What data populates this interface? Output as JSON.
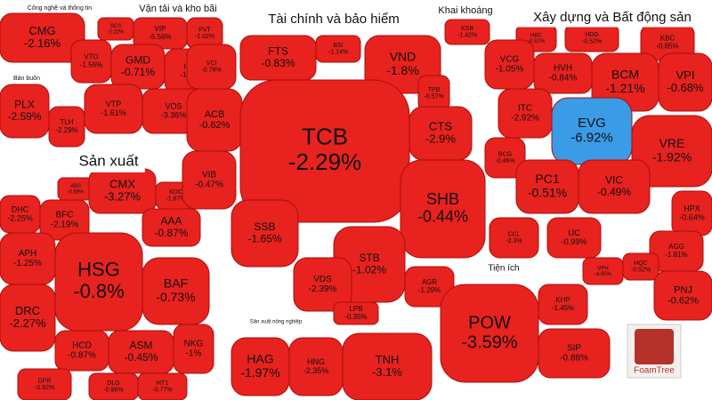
{
  "chart_data": {
    "type": "treemap",
    "color": "#e8221e",
    "logo": "FoamTree",
    "groups": [
      {
        "name": "Công nghệ và thông tin",
        "items": [
          {
            "label": "CMG",
            "value": -2.16,
            "value_label": "-2.16%"
          }
        ]
      },
      {
        "name": "Vận tải và kho bãi",
        "items": [
          {
            "label": "SCS",
            "value": -2.22,
            "value_label": "-2.22%"
          },
          {
            "label": "VIP",
            "value": -5.56,
            "value_label": "-5.56%"
          },
          {
            "label": "PVT",
            "value": -1.02,
            "value_label": "-1.02%"
          },
          {
            "label": "VTO",
            "value": -1.56,
            "value_label": "-1.56%"
          },
          {
            "label": "GMD",
            "value": -0.71,
            "value_label": "-0.71%"
          },
          {
            "label": "HAH",
            "value": -1.33,
            "value_label": "-1.33%"
          },
          {
            "label": "VTP",
            "value": -1.61,
            "value_label": "-1.61%"
          },
          {
            "label": "VOS",
            "value": -3.36,
            "value_label": "-3.36%"
          }
        ]
      },
      {
        "name": "Bán buôn",
        "items": [
          {
            "label": "PLX",
            "value": -2.59,
            "value_label": "-2.59%"
          },
          {
            "label": "TLH",
            "value": -2.29,
            "value_label": "-2.29%"
          }
        ]
      },
      {
        "name": "Sản xuất",
        "items": [
          {
            "label": "ABS",
            "value": -0.58,
            "value_label": "-0.58%"
          },
          {
            "label": "DHC",
            "value": -2.25,
            "value_label": "-2.25%"
          },
          {
            "label": "BFC",
            "value": -2.19,
            "value_label": "-2.19%"
          },
          {
            "label": "CMX",
            "value": -3.27,
            "value_label": "-3.27%"
          },
          {
            "label": "KDC",
            "value": -1.87,
            "value_label": "-1.87%"
          },
          {
            "label": "AAA",
            "value": -0.87,
            "value_label": "-0.87%"
          },
          {
            "label": "APH",
            "value": -1.25,
            "value_label": "-1.25%"
          },
          {
            "label": "HSG",
            "value": -0.8,
            "value_label": "-0.8%"
          },
          {
            "label": "BAF",
            "value": -0.73,
            "value_label": "-0.73%"
          },
          {
            "label": "DRC",
            "value": -2.27,
            "value_label": "-2.27%"
          },
          {
            "label": "HCD",
            "value": -0.87,
            "value_label": "-0.87%"
          },
          {
            "label": "ASM",
            "value": -0.45,
            "value_label": "-0.45%"
          },
          {
            "label": "NKG",
            "value": -1,
            "value_label": "-1%"
          },
          {
            "label": "DPR",
            "value": -0.92,
            "value_label": "-0.92%"
          },
          {
            "label": "DLG",
            "value": -0.96,
            "value_label": "-0.96%"
          },
          {
            "label": "HT1",
            "value": -0.77,
            "value_label": "-0.77%"
          }
        ]
      },
      {
        "name": "Tài chính và bảo hiểm",
        "items": [
          {
            "label": "VCI",
            "value": -0.76,
            "value_label": "-0.76%"
          },
          {
            "label": "FTS",
            "value": -0.83,
            "value_label": "-0.83%"
          },
          {
            "label": "BSI",
            "value": -1.14,
            "value_label": "-1.14%"
          },
          {
            "label": "VND",
            "value": -1.8,
            "value_label": "-1.8%"
          },
          {
            "label": "TPB",
            "value": -0.57,
            "value_label": "-0.57%"
          },
          {
            "label": "ACB",
            "value": -0.62,
            "value_label": "-0.62%"
          },
          {
            "label": "TCB",
            "value": -2.29,
            "value_label": "-2.29%"
          },
          {
            "label": "CTS",
            "value": -2.9,
            "value_label": "-2.9%"
          },
          {
            "label": "VIB",
            "value": -0.47,
            "value_label": "-0.47%"
          },
          {
            "label": "SHB",
            "value": -0.44,
            "value_label": "-0.44%"
          },
          {
            "label": "SSB",
            "value": -1.65,
            "value_label": "-1.65%"
          },
          {
            "label": "STB",
            "value": -1.02,
            "value_label": "-1.02%"
          },
          {
            "label": "VDS",
            "value": -2.39,
            "value_label": "-2.39%"
          },
          {
            "label": "AGR",
            "value": -1.29,
            "value_label": "-1.29%"
          },
          {
            "label": "LPB",
            "value": -0.35,
            "value_label": "-0.35%"
          }
        ]
      },
      {
        "name": "Khai khoáng",
        "items": [
          {
            "label": "KSB",
            "value": -1.42,
            "value_label": "-1.42%"
          }
        ]
      },
      {
        "name": "Xây dựng và Bất động sản",
        "items": [
          {
            "label": "HBC",
            "value": -0.51,
            "value_label": "-0.51%"
          },
          {
            "label": "HDG",
            "value": -0.52,
            "value_label": "-0.52%"
          },
          {
            "label": "KBC",
            "value": -0.85,
            "value_label": "-0.85%"
          },
          {
            "label": "VCG",
            "value": -1.05,
            "value_label": "-1.05%"
          },
          {
            "label": "HVH",
            "value": -0.84,
            "value_label": "-0.84%"
          },
          {
            "label": "BCM",
            "value": -1.21,
            "value_label": "-1.21%"
          },
          {
            "label": "VPI",
            "value": -0.68,
            "value_label": "-0.68%"
          },
          {
            "label": "ITC",
            "value": -2.92,
            "value_label": "-2.92%"
          },
          {
            "label": "EVG",
            "value": -6.92,
            "value_label": "-6.92%",
            "color": "#3a9be6"
          },
          {
            "label": "VRE",
            "value": -1.92,
            "value_label": "-1.92%"
          },
          {
            "label": "BCG",
            "value": -0.46,
            "value_label": "-0.46%"
          },
          {
            "label": "PC1",
            "value": -0.51,
            "value_label": "-0.51%"
          },
          {
            "label": "VIC",
            "value": -0.49,
            "value_label": "-0.49%"
          },
          {
            "label": "HPX",
            "value": -0.64,
            "value_label": "-0.64%"
          },
          {
            "label": "CCL",
            "value": -2.3,
            "value_label": "-2.3%"
          },
          {
            "label": "IJC",
            "value": -0.99,
            "value_label": "-0.99%"
          },
          {
            "label": "AGG",
            "value": -1.81,
            "value_label": "-1.81%"
          },
          {
            "label": "HQC",
            "value": -0.52,
            "value_label": "-0.52%"
          },
          {
            "label": "VPH",
            "value": -4.95,
            "value_label": "-4.95%"
          }
        ]
      },
      {
        "name": "Tiện ích",
        "items": [
          {
            "label": "POW",
            "value": -3.59,
            "value_label": "-3.59%"
          },
          {
            "label": "KHP",
            "value": -1.45,
            "value_label": "-1.45%"
          },
          {
            "label": "SIP",
            "value": -0.88,
            "value_label": "-0.88%"
          }
        ]
      },
      {
        "items": [
          {
            "label": "PNJ",
            "value": -0.62,
            "value_label": "-0.62%"
          }
        ]
      },
      {
        "name": "Sản xuất nông nghiệp",
        "items": [
          {
            "label": "HAG",
            "value": -1.97,
            "value_label": "-1.97%"
          },
          {
            "label": "HNG",
            "value": -2.35,
            "value_label": "-2.35%"
          }
        ]
      },
      {
        "items": [
          {
            "label": "TNH",
            "value": -3.1,
            "value_label": "-3.1%"
          }
        ]
      }
    ]
  }
}
